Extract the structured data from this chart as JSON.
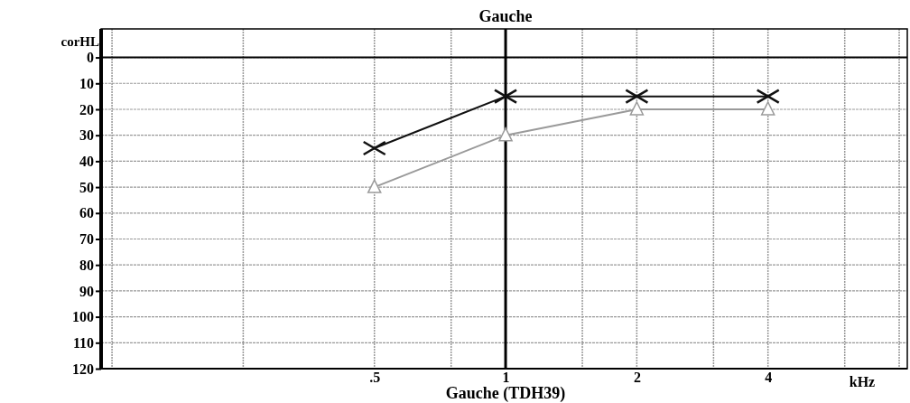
{
  "chart_data": {
    "type": "line",
    "title": "Gauche",
    "xlabel": "Gauche (TDH39)",
    "ylabel": "corHL",
    "log": "x",
    "xlim": [
      0.118,
      8.35
    ],
    "xticks": [
      {
        "value": 0.125,
        "label": null
      },
      {
        "value": 0.25,
        "label": null
      },
      {
        "value": 0.5,
        "label": ".5"
      },
      {
        "value": 0.75,
        "label": null
      },
      1,
      {
        "value": 1.5,
        "label": null
      },
      2,
      {
        "value": 3,
        "label": null
      },
      4,
      {
        "value": 6,
        "label": null
      },
      {
        "value": 8,
        "label": null
      }
    ],
    "ylim": [
      120,
      -11
    ],
    "yticks": [
      0,
      10,
      20,
      30,
      40,
      50,
      60,
      70,
      80,
      90,
      100,
      110,
      120
    ],
    "grid": true,
    "annotations": [
      "kHz"
    ],
    "ref_lines": [
      {
        "axis": "y",
        "value": 0,
        "color": "#000000"
      },
      {
        "axis": "x",
        "value": 1,
        "color": "#000000"
      }
    ],
    "x": [
      0.5,
      1,
      2,
      4
    ],
    "series": [
      {
        "color": "#111111",
        "values": [
          35,
          15,
          15,
          15
        ],
        "marker": "cross",
        "line_style": "solid"
      },
      {
        "color": "#9a9a9a",
        "values": [
          50,
          30,
          20,
          20
        ],
        "marker": "triangle",
        "line_style": "solid"
      }
    ]
  }
}
